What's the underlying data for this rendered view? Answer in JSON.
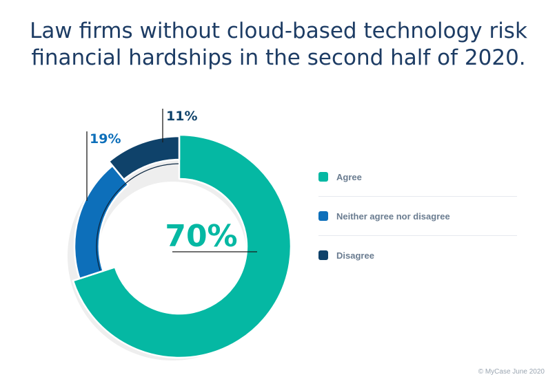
{
  "title": {
    "line1": "Law firms without cloud-based technology risk",
    "line2": "financial hardships in the second half of 2020."
  },
  "chart_data": {
    "type": "pie",
    "variant": "donut",
    "title": "Law firms without cloud-based technology risk financial hardships in the second half of 2020.",
    "categories": [
      "Agree",
      "Neither agree nor disagree",
      "Disagree"
    ],
    "values": [
      70,
      19,
      11
    ],
    "labels": [
      "70%",
      "19%",
      "11%"
    ],
    "colors": [
      "#05b8a3",
      "#0d6fba",
      "#0f426a"
    ],
    "legend_position": "right"
  },
  "legend": {
    "items": [
      {
        "label": "Agree",
        "color": "#05b8a3"
      },
      {
        "label": "Neither agree nor disagree",
        "color": "#0d6fba"
      },
      {
        "label": "Disagree",
        "color": "#0f426a"
      }
    ]
  },
  "footer": {
    "copyright": "© MyCase June 2020"
  }
}
